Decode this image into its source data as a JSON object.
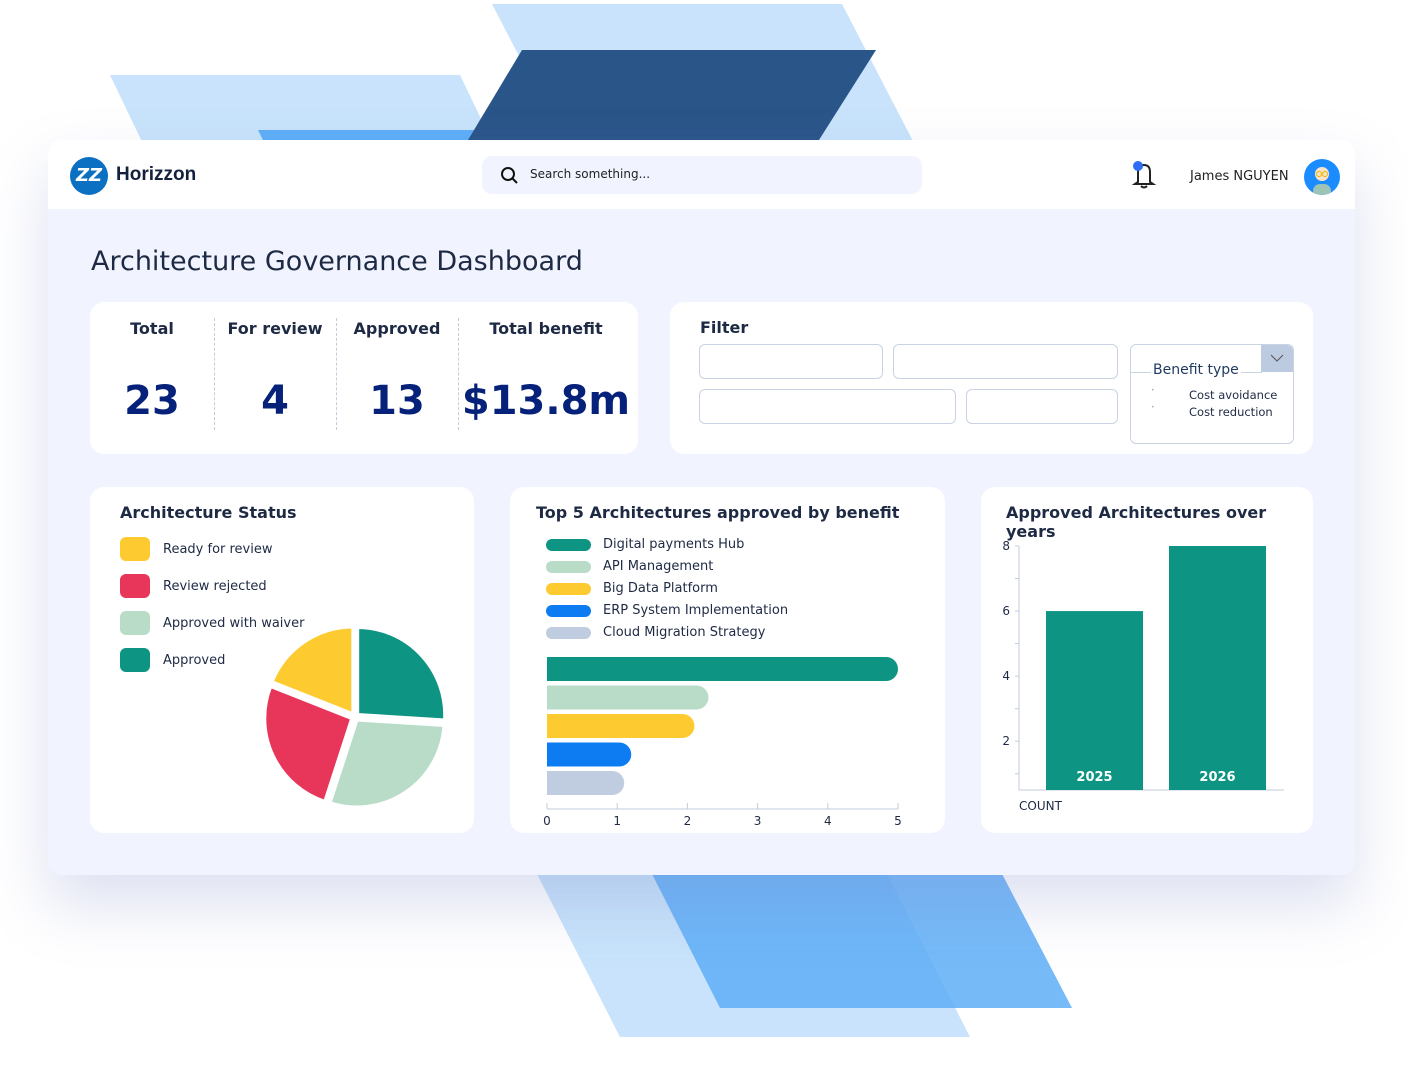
{
  "header": {
    "brand": "Horizzon",
    "logo_letters": "ZZ",
    "search_placeholder": "Search something...",
    "user_name": "James NGUYEN",
    "icons": [
      "search-icon",
      "bell-icon",
      "avatar"
    ]
  },
  "page_title": "Architecture Governance Dashboard",
  "kpis": [
    {
      "label": "Total",
      "value": "23"
    },
    {
      "label": "For review",
      "value": "4"
    },
    {
      "label": "Approved",
      "value": "13"
    },
    {
      "label": "Total benefit",
      "value": "$13.8m"
    }
  ],
  "filter": {
    "title": "Filter",
    "benefit_type": {
      "label": "Benefit type",
      "options": [
        "Cost avoidance",
        "Cost reduction"
      ]
    }
  },
  "colors": {
    "teal": "#0d9482",
    "mint": "#b9dcc8",
    "yellow": "#fdca30",
    "red": "#e8365a",
    "blue": "#0d7cf2",
    "grey": "#c0cce0",
    "navy": "#06217a"
  },
  "chart_data": [
    {
      "type": "pie",
      "title": "Architecture Status",
      "legend": [
        "Ready for review",
        "Review rejected",
        "Approved with waiver",
        "Approved"
      ],
      "slices": [
        {
          "name": "Approved",
          "value": 26,
          "color": "#0d9482"
        },
        {
          "name": "Approved with waiver",
          "value": 29,
          "color": "#b9dcc8"
        },
        {
          "name": "Review rejected",
          "value": 26,
          "color": "#e8365a"
        },
        {
          "name": "Ready for review",
          "value": 19,
          "color": "#fdca30"
        }
      ]
    },
    {
      "type": "bar",
      "orientation": "horizontal",
      "title": "Top 5 Architectures approved by benefit",
      "categories": [
        "Digital payments Hub",
        "API Management",
        "Big Data Platform",
        "ERP System Implementation",
        "Cloud Migration Strategy"
      ],
      "values": [
        5,
        2.3,
        2.1,
        1.2,
        1.1
      ],
      "colors": [
        "#0d9482",
        "#b9dcc8",
        "#fdca30",
        "#0d7cf2",
        "#c0cce0"
      ],
      "xlim": [
        0,
        5
      ],
      "xticks": [
        "0",
        "1",
        "2",
        "3",
        "4",
        "5"
      ]
    },
    {
      "type": "bar",
      "title": "Approved Architectures over years",
      "categories": [
        "2025",
        "2026"
      ],
      "values": [
        6,
        8
      ],
      "ylim": [
        0.5,
        8
      ],
      "yticks": [
        "2",
        "4",
        "6",
        "8"
      ],
      "xlabel": "COUNT",
      "color": "#0d9482"
    }
  ]
}
